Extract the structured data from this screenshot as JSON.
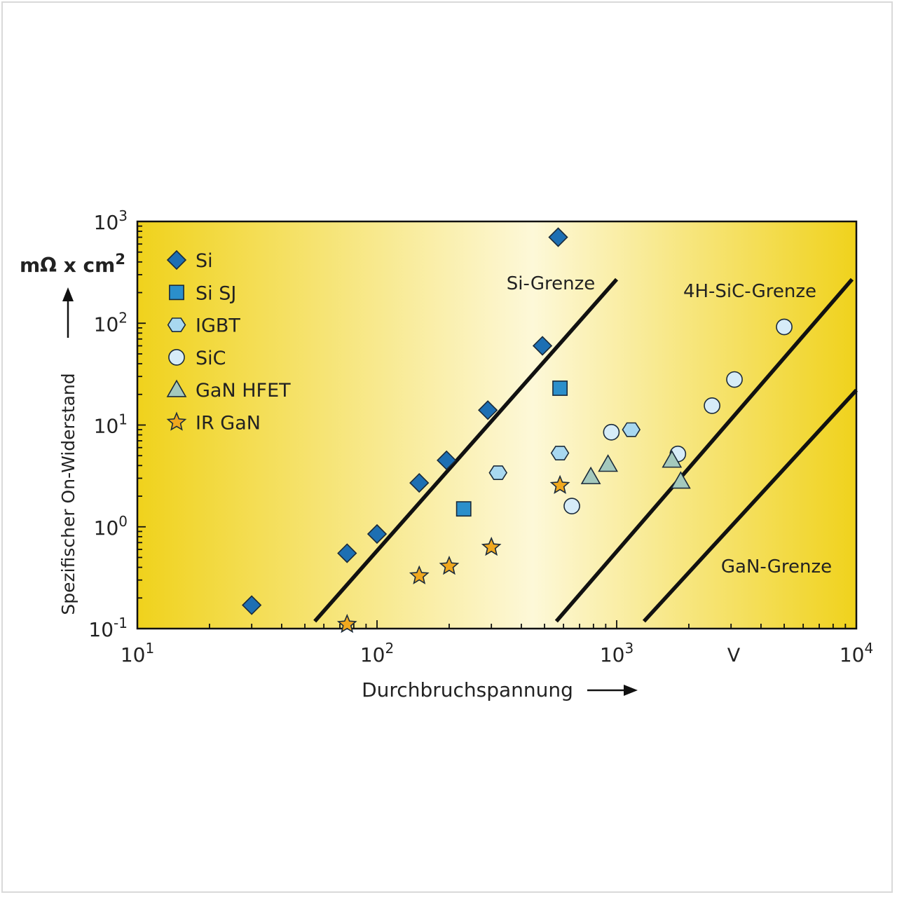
{
  "chart_data": {
    "type": "scatter",
    "xlabel": "Durchbruchspannung",
    "ylabel": "Spezifischer On-Widerstand",
    "yunit_label": "mΩ x cm",
    "yunit_sup": "2",
    "xunit_tick_label": "V",
    "x_scale": "log",
    "y_scale": "log",
    "xlim": [
      10,
      10000
    ],
    "ylim": [
      0.1,
      1000
    ],
    "x_ticks": [
      {
        "base": "10",
        "exp": "1",
        "value": 10
      },
      {
        "base": "10",
        "exp": "2",
        "value": 100
      },
      {
        "base": "10",
        "exp": "3",
        "value": 1000
      },
      {
        "base": "10",
        "exp": "4",
        "value": 10000
      }
    ],
    "y_ticks": [
      {
        "base": "10",
        "exp": "3",
        "value": 1000
      },
      {
        "base": "10",
        "exp": "2",
        "value": 100
      },
      {
        "base": "10",
        "exp": "1",
        "value": 10
      },
      {
        "base": "10",
        "exp": "0",
        "value": 1
      },
      {
        "base": "10",
        "exp": "-1",
        "value": 0.1
      }
    ],
    "legend_position": "top-left",
    "background_gradient": [
      "#f0d21c",
      "#fdf8d8",
      "#f0d21c"
    ],
    "series": [
      {
        "name": "Si",
        "marker": "diamond",
        "color": "#1d6fb3",
        "points": [
          [
            30,
            0.17
          ],
          [
            75,
            0.55
          ],
          [
            100,
            0.85
          ],
          [
            150,
            2.7
          ],
          [
            195,
            4.5
          ],
          [
            290,
            14
          ],
          [
            490,
            60
          ],
          [
            570,
            700
          ]
        ]
      },
      {
        "name": "Si SJ",
        "marker": "square",
        "color": "#2b8fcb",
        "points": [
          [
            230,
            1.5
          ],
          [
            580,
            23
          ]
        ]
      },
      {
        "name": "IGBT",
        "marker": "hexagon",
        "color": "#a8d8f0",
        "points": [
          [
            320,
            3.4
          ],
          [
            580,
            5.3
          ],
          [
            1150,
            9
          ]
        ]
      },
      {
        "name": "SiC",
        "marker": "circle",
        "color": "#d6ecf8",
        "points": [
          [
            650,
            1.6
          ],
          [
            950,
            8.5
          ],
          [
            1800,
            5.2
          ],
          [
            2500,
            15.5
          ],
          [
            3100,
            28
          ],
          [
            5000,
            92
          ]
        ]
      },
      {
        "name": "GaN HFET",
        "marker": "triangle",
        "color": "#a4c9bd",
        "points": [
          [
            780,
            3.1
          ],
          [
            920,
            4.1
          ],
          [
            1700,
            4.5
          ],
          [
            1850,
            2.8
          ]
        ]
      },
      {
        "name": "IR GaN",
        "marker": "star",
        "color": "#f0a81e",
        "points": [
          [
            75,
            0.11
          ],
          [
            150,
            0.33
          ],
          [
            200,
            0.41
          ],
          [
            300,
            0.63
          ],
          [
            580,
            2.55
          ]
        ]
      }
    ],
    "limit_lines": [
      {
        "name": "Si-Grenze",
        "from": [
          55,
          0.118
        ],
        "to": [
          1000,
          270
        ]
      },
      {
        "name": "4H-SiC-Grenze",
        "from": [
          560,
          0.118
        ],
        "to": [
          9600,
          270
        ]
      },
      {
        "name": "GaN-Grenze",
        "from": [
          1300,
          0.118
        ],
        "to": [
          10000,
          22
        ]
      }
    ]
  }
}
